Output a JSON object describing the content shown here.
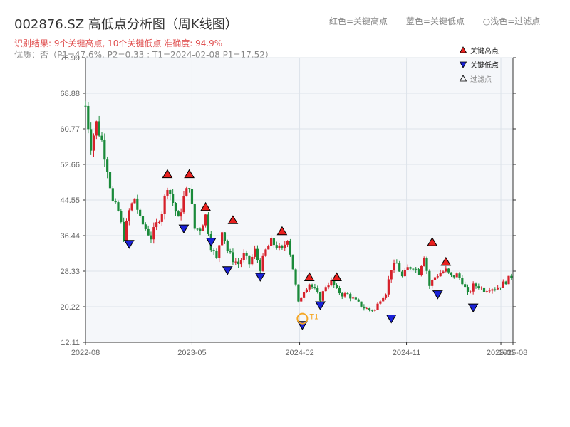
{
  "header": {
    "title": "002876.SZ 高低点分析图（周K线图）",
    "subtitle": "识别结果: 9个关键高点, 10个关键低点   准确度: 94.9%",
    "quality": "优质：否（P1=47.6%, P2=0.33 ; T1=2024-02-08 P1=17.52）",
    "legend_top": [
      "红色=关键高点",
      "蓝色=关键低点",
      "○浅色=过滤点"
    ]
  },
  "colors": {
    "up": "#d6202a",
    "down": "#1a8a3a",
    "high_marker": "#e8201e",
    "low_marker": "#1a22d8",
    "t1_marker": "#f5a623",
    "grid": "#dde3ea",
    "plot_bg": "#f5f7fa"
  },
  "chart_data": {
    "type": "candlestick",
    "title": "002876.SZ 高低点分析图（周K线图）",
    "y_ticks": [
      "76.99",
      "68.88",
      "60.77",
      "52.66",
      "44.55",
      "36.44",
      "28.33",
      "20.22",
      "12.11"
    ],
    "ylim": [
      12.11,
      76.99
    ],
    "x_ticks": [
      {
        "label": "2022-08",
        "date": "2022-08-01"
      },
      {
        "label": "2023-05",
        "date": "2023-05-01"
      },
      {
        "label": "2024-02",
        "date": "2024-02-01"
      },
      {
        "label": "2024-11",
        "date": "2024-11-01"
      },
      {
        "label": "2025-07",
        "date": "2025-07-01"
      },
      {
        "label": "2025-08",
        "date": "2025-08-01"
      }
    ],
    "xlim": [
      "2022-08-01",
      "2025-08-01"
    ],
    "grid": true,
    "legend": {
      "position": "top-right",
      "entries": [
        {
          "label": "关键高点",
          "symbol": "triangle-up",
          "color": "#e8201e"
        },
        {
          "label": "关键低点",
          "symbol": "triangle-down",
          "color": "#1a22d8"
        },
        {
          "label": "过滤点",
          "symbol": "triangle-up-hollow",
          "color": "#888888"
        }
      ]
    },
    "close_path": [
      [
        "2022-08-01",
        66.0
      ],
      [
        "2022-08-15",
        57.0
      ],
      [
        "2022-08-29",
        62.0
      ],
      [
        "2022-09-12",
        58.0
      ],
      [
        "2022-09-26",
        52.0
      ],
      [
        "2022-10-10",
        44.0
      ],
      [
        "2022-10-24",
        42.0
      ],
      [
        "2022-11-07",
        36.0
      ],
      [
        "2022-11-21",
        42.0
      ],
      [
        "2022-12-05",
        45.0
      ],
      [
        "2022-12-19",
        40.0
      ],
      [
        "2023-01-02",
        38.0
      ],
      [
        "2023-01-16",
        36.0
      ],
      [
        "2023-01-30",
        39.0
      ],
      [
        "2023-02-13",
        42.0
      ],
      [
        "2023-02-27",
        48.0
      ],
      [
        "2023-03-13",
        44.0
      ],
      [
        "2023-03-27",
        40.0
      ],
      [
        "2023-04-10",
        45.0
      ],
      [
        "2023-04-24",
        48.0
      ],
      [
        "2023-05-08",
        38.0
      ],
      [
        "2023-05-22",
        38.0
      ],
      [
        "2023-06-05",
        41.0
      ],
      [
        "2023-06-19",
        34.0
      ],
      [
        "2023-07-03",
        31.0
      ],
      [
        "2023-07-17",
        38.0
      ],
      [
        "2023-07-31",
        33.0
      ],
      [
        "2023-08-14",
        31.0
      ],
      [
        "2023-08-28",
        30.0
      ],
      [
        "2023-09-11",
        32.0
      ],
      [
        "2023-09-25",
        30.0
      ],
      [
        "2023-10-09",
        33.0
      ],
      [
        "2023-10-23",
        29.0
      ],
      [
        "2023-11-06",
        33.0
      ],
      [
        "2023-11-20",
        35.0
      ],
      [
        "2023-12-04",
        34.0
      ],
      [
        "2023-12-18",
        33.0
      ],
      [
        "2024-01-01",
        36.0
      ],
      [
        "2024-01-15",
        29.0
      ],
      [
        "2024-01-29",
        21.0
      ],
      [
        "2024-02-12",
        24.0
      ],
      [
        "2024-02-26",
        25.5
      ],
      [
        "2024-03-11",
        24.0
      ],
      [
        "2024-03-25",
        22.0
      ],
      [
        "2024-04-08",
        25.0
      ],
      [
        "2024-04-22",
        26.0
      ],
      [
        "2024-05-06",
        24.0
      ],
      [
        "2024-05-20",
        23.0
      ],
      [
        "2024-06-03",
        23.0
      ],
      [
        "2024-06-17",
        22.0
      ],
      [
        "2024-07-01",
        21.0
      ],
      [
        "2024-07-15",
        20.0
      ],
      [
        "2024-07-29",
        19.5
      ],
      [
        "2024-08-12",
        19.5
      ],
      [
        "2024-08-26",
        22.0
      ],
      [
        "2024-09-09",
        23.5
      ],
      [
        "2024-09-23",
        29.0
      ],
      [
        "2024-10-07",
        30.0
      ],
      [
        "2024-10-21",
        27.0
      ],
      [
        "2024-11-04",
        29.0
      ],
      [
        "2024-11-18",
        29.5
      ],
      [
        "2024-12-02",
        28.0
      ],
      [
        "2024-12-16",
        32.0
      ],
      [
        "2024-12-30",
        25.0
      ],
      [
        "2025-01-13",
        27.0
      ],
      [
        "2025-01-27",
        28.0
      ],
      [
        "2025-02-10",
        28.5
      ],
      [
        "2025-02-24",
        27.0
      ],
      [
        "2025-03-10",
        27.5
      ],
      [
        "2025-03-24",
        26.0
      ],
      [
        "2025-04-07",
        23.0
      ],
      [
        "2025-04-21",
        25.0
      ],
      [
        "2025-05-05",
        25.0
      ],
      [
        "2025-05-19",
        24.0
      ],
      [
        "2025-06-02",
        24.5
      ],
      [
        "2025-06-16",
        24.5
      ],
      [
        "2025-06-30",
        25.0
      ],
      [
        "2025-07-14",
        26.0
      ],
      [
        "2025-08-01",
        27.5
      ]
    ],
    "key_highs": [
      {
        "date": "2023-02-27",
        "value": 49.0
      },
      {
        "date": "2023-04-24",
        "value": 49.0
      },
      {
        "date": "2023-06-05",
        "value": 41.5
      },
      {
        "date": "2023-08-14",
        "value": 38.5
      },
      {
        "date": "2023-12-18",
        "value": 36.0
      },
      {
        "date": "2024-02-26",
        "value": 25.5
      },
      {
        "date": "2024-05-06",
        "value": 25.5
      },
      {
        "date": "2025-01-06",
        "value": 33.5
      },
      {
        "date": "2025-02-10",
        "value": 29.0
      }
    ],
    "key_lows": [
      {
        "date": "2022-11-21",
        "value": 36.0
      },
      {
        "date": "2023-04-10",
        "value": 39.5
      },
      {
        "date": "2023-06-19",
        "value": 36.5
      },
      {
        "date": "2023-07-31",
        "value": 30.0
      },
      {
        "date": "2023-10-23",
        "value": 28.5
      },
      {
        "date": "2024-02-08",
        "value": 17.5
      },
      {
        "date": "2024-03-25",
        "value": 22.0
      },
      {
        "date": "2024-09-23",
        "value": 19.0
      },
      {
        "date": "2025-01-20",
        "value": 24.5
      },
      {
        "date": "2025-04-21",
        "value": 21.5
      }
    ],
    "annotations": [
      {
        "label": "T1",
        "date": "2024-02-08",
        "value": 17.52
      }
    ]
  }
}
